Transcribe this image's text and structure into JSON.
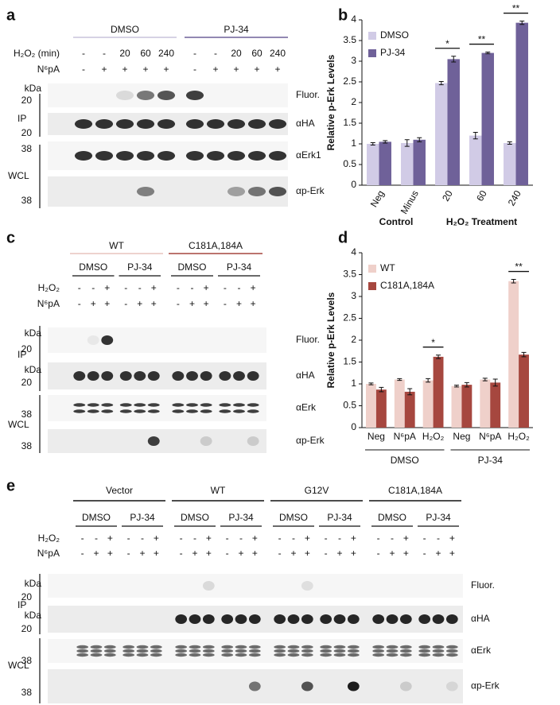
{
  "chart_data": [
    {
      "type": "bar",
      "label": "b",
      "y_label": "Relative p-Erk Levels",
      "categories": [
        "Neg",
        "Minus",
        "20",
        "60",
        "240"
      ],
      "group_labels": [
        "Control",
        "H₂O₂ Treatment"
      ],
      "series": [
        {
          "name": "DMSO",
          "color": "#d1cbe6",
          "values": [
            1.0,
            1.02,
            2.47,
            1.2,
            1.02
          ],
          "errors": [
            0.03,
            0.08,
            0.04,
            0.08,
            0.03
          ]
        },
        {
          "name": "PJ-34",
          "color": "#6f6199",
          "values": [
            1.05,
            1.1,
            3.05,
            3.2,
            3.93
          ],
          "errors": [
            0.03,
            0.05,
            0.07,
            0.02,
            0.04
          ]
        }
      ],
      "significance": [
        null,
        null,
        "*",
        "**",
        "**"
      ],
      "ylim": [
        0,
        4
      ],
      "yticks": [
        0,
        0.5,
        1,
        1.5,
        2,
        2.5,
        3,
        3.5,
        4
      ],
      "legend": "top-left"
    },
    {
      "type": "bar",
      "label": "d",
      "y_label": "Relative p-Erk Levels",
      "categories": [
        "Neg",
        "N⁶pA",
        "H₂O₂",
        "Neg",
        "N⁶pA",
        "H₂O₂"
      ],
      "group_labels": [
        "DMSO",
        "PJ-34"
      ],
      "series": [
        {
          "name": "WT",
          "color": "#efd0ca",
          "values": [
            1.0,
            1.1,
            1.08,
            0.95,
            1.1,
            3.35
          ],
          "errors": [
            0.02,
            0.02,
            0.04,
            0.02,
            0.03,
            0.04
          ]
        },
        {
          "name": "C181A,184A",
          "color": "#a6473f",
          "values": [
            0.87,
            0.82,
            1.62,
            0.98,
            1.03,
            1.67
          ],
          "errors": [
            0.05,
            0.07,
            0.04,
            0.05,
            0.08,
            0.05
          ]
        }
      ],
      "significance": [
        null,
        null,
        "*",
        null,
        null,
        "**"
      ],
      "ylim": [
        0,
        4
      ],
      "yticks": [
        0,
        0.5,
        1,
        1.5,
        2,
        2.5,
        3,
        3.5,
        4
      ],
      "legend": "top-left"
    }
  ],
  "panels": {
    "a": {
      "label": "a",
      "groups": [
        "DMSO",
        "PJ-34"
      ],
      "group_colors": [
        "#c9c4dc",
        "#6f6199"
      ],
      "conditions": [
        {
          "name": "H₂O₂ (min)",
          "lanes": [
            "-",
            "-",
            "20",
            "60",
            "240",
            "-",
            "-",
            "20",
            "60",
            "240"
          ]
        },
        {
          "name": "N⁶pA",
          "lanes": [
            "-",
            "+",
            "+",
            "+",
            "+",
            "-",
            "+",
            "+",
            "+",
            "+"
          ]
        }
      ],
      "markers": [
        "kDa",
        "20",
        "20",
        "38",
        "38"
      ],
      "sections": [
        "IP",
        "WCL"
      ],
      "blots": [
        "Fluor.",
        "αHA",
        "αErk1",
        "αp-Erk"
      ]
    },
    "c": {
      "label": "c",
      "groups": [
        "WT",
        "C181A,184A"
      ],
      "group_colors": [
        "#e8c4be",
        "#a6473f"
      ],
      "subgroups": [
        "DMSO",
        "PJ-34",
        "DMSO",
        "PJ-34"
      ],
      "conditions": [
        {
          "name": "H₂O₂",
          "lanes": [
            "-",
            "-",
            "+",
            "-",
            "-",
            "+",
            "-",
            "-",
            "+",
            "-",
            "-",
            "+"
          ]
        },
        {
          "name": "N⁶pA",
          "lanes": [
            "-",
            "+",
            "+",
            "-",
            "+",
            "+",
            "-",
            "+",
            "+",
            "-",
            "+",
            "+"
          ]
        }
      ],
      "markers": [
        "kDa",
        "20",
        "kDa",
        "20",
        "38",
        "38"
      ],
      "sections": [
        "IP",
        "WCL"
      ],
      "blots": [
        "Fluor.",
        "αHA",
        "αErk",
        "αp-Erk"
      ]
    },
    "e": {
      "label": "e",
      "groups": [
        "Vector",
        "WT",
        "G12V",
        "C181A,184A"
      ],
      "subgroups": [
        "DMSO",
        "PJ-34",
        "DMSO",
        "PJ-34",
        "DMSO",
        "PJ-34",
        "DMSO",
        "PJ-34"
      ],
      "conditions": [
        {
          "name": "H₂O₂",
          "lanes": [
            "-",
            "-",
            "+",
            "-",
            "-",
            "+",
            "-",
            "-",
            "+",
            "-",
            "-",
            "+",
            "-",
            "-",
            "+",
            "-",
            "-",
            "+",
            "-",
            "-",
            "+",
            "-",
            "-",
            "+"
          ]
        },
        {
          "name": "N⁶pA",
          "lanes": [
            "-",
            "+",
            "+",
            "-",
            "+",
            "+",
            "-",
            "+",
            "+",
            "-",
            "+",
            "+",
            "-",
            "+",
            "+",
            "-",
            "+",
            "+",
            "-",
            "+",
            "+",
            "-",
            "+",
            "+"
          ]
        }
      ],
      "markers": [
        "kDa",
        "20",
        "kDa",
        "20",
        "38",
        "38"
      ],
      "sections": [
        "IP",
        "WCL"
      ],
      "blots": [
        "Fluor.",
        "αHA",
        "αErk",
        "αp-Erk"
      ]
    }
  }
}
